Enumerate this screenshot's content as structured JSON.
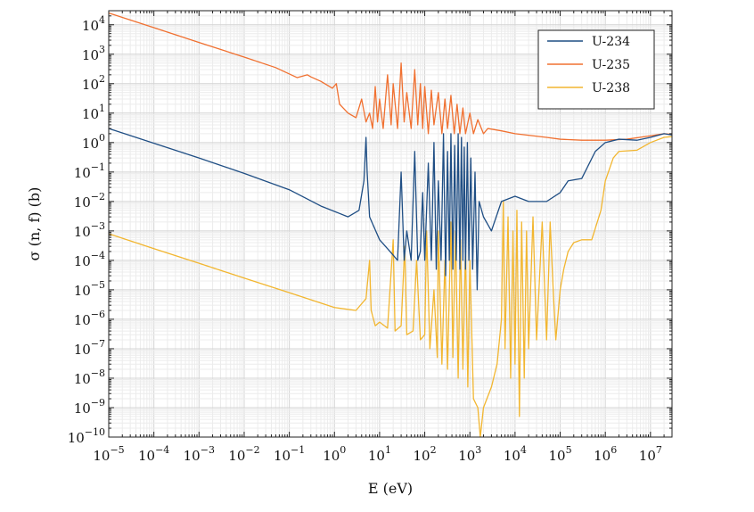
{
  "chart_data": {
    "type": "line",
    "title": "",
    "xlabel": "E (eV)",
    "ylabel": "σ (n, f) (b)",
    "xscale": "log",
    "yscale": "log",
    "xlim": [
      1e-05,
      30000000
    ],
    "ylim": [
      1e-10,
      30000
    ],
    "grid": true,
    "legend_position": "top-right",
    "x_ticks": [
      {
        "value": 1e-05,
        "base": "10",
        "exp": "−5"
      },
      {
        "value": 0.0001,
        "base": "10",
        "exp": "−4"
      },
      {
        "value": 0.001,
        "base": "10",
        "exp": "−3"
      },
      {
        "value": 0.01,
        "base": "10",
        "exp": "−2"
      },
      {
        "value": 0.1,
        "base": "10",
        "exp": "−1"
      },
      {
        "value": 1,
        "base": "10",
        "exp": "0"
      },
      {
        "value": 10,
        "base": "10",
        "exp": "1"
      },
      {
        "value": 100,
        "base": "10",
        "exp": "2"
      },
      {
        "value": 1000,
        "base": "10",
        "exp": "3"
      },
      {
        "value": 10000,
        "base": "10",
        "exp": "4"
      },
      {
        "value": 100000,
        "base": "10",
        "exp": "5"
      },
      {
        "value": 1000000,
        "base": "10",
        "exp": "6"
      },
      {
        "value": 10000000,
        "base": "10",
        "exp": "7"
      }
    ],
    "y_ticks": [
      {
        "value": 1e-10,
        "base": "10",
        "exp": "−10"
      },
      {
        "value": 1e-09,
        "base": "10",
        "exp": "−9"
      },
      {
        "value": 1e-08,
        "base": "10",
        "exp": "−8"
      },
      {
        "value": 1e-07,
        "base": "10",
        "exp": "−7"
      },
      {
        "value": 1e-06,
        "base": "10",
        "exp": "−6"
      },
      {
        "value": 1e-05,
        "base": "10",
        "exp": "−5"
      },
      {
        "value": 0.0001,
        "base": "10",
        "exp": "−4"
      },
      {
        "value": 0.001,
        "base": "10",
        "exp": "−3"
      },
      {
        "value": 0.01,
        "base": "10",
        "exp": "−2"
      },
      {
        "value": 0.1,
        "base": "10",
        "exp": "−1"
      },
      {
        "value": 1,
        "base": "10",
        "exp": "0"
      },
      {
        "value": 10,
        "base": "10",
        "exp": "1"
      },
      {
        "value": 100,
        "base": "10",
        "exp": "2"
      },
      {
        "value": 1000,
        "base": "10",
        "exp": "3"
      },
      {
        "value": 10000,
        "base": "10",
        "exp": "4"
      }
    ],
    "series": [
      {
        "name": "U-234",
        "color": "#1f4e84",
        "points": [
          [
            1e-05,
            3.0
          ],
          [
            0.001,
            0.3
          ],
          [
            0.01,
            0.09
          ],
          [
            0.1,
            0.025
          ],
          [
            0.5,
            0.007
          ],
          [
            2.0,
            0.003
          ],
          [
            3.5,
            0.005
          ],
          [
            4.5,
            0.05
          ],
          [
            5.0,
            1.5
          ],
          [
            5.3,
            0.1
          ],
          [
            6.0,
            0.003
          ],
          [
            10,
            0.0005
          ],
          [
            15,
            0.00025
          ],
          [
            20,
            0.00015
          ],
          [
            25,
            0.0001
          ],
          [
            30,
            0.1
          ],
          [
            35,
            0.0001
          ],
          [
            40,
            0.001
          ],
          [
            50,
            0.0001
          ],
          [
            60,
            0.5
          ],
          [
            70,
            0.0001
          ],
          [
            80,
            0.0002
          ],
          [
            90,
            0.02
          ],
          [
            100,
            0.0001
          ],
          [
            120,
            0.2
          ],
          [
            140,
            0.0001
          ],
          [
            160,
            1.0
          ],
          [
            180,
            5e-05
          ],
          [
            200,
            0.05
          ],
          [
            230,
            0.0001
          ],
          [
            260,
            2.0
          ],
          [
            290,
            3e-05
          ],
          [
            320,
            0.5
          ],
          [
            350,
            0.0001
          ],
          [
            380,
            2.0
          ],
          [
            420,
            5e-05
          ],
          [
            460,
            0.8
          ],
          [
            500,
            0.0001
          ],
          [
            550,
            2.0
          ],
          [
            600,
            5e-05
          ],
          [
            650,
            1.5
          ],
          [
            700,
            0.0001
          ],
          [
            750,
            0.7
          ],
          [
            800,
            5e-05
          ],
          [
            880,
            1.0
          ],
          [
            950,
            0.0001
          ],
          [
            1050,
            0.3
          ],
          [
            1150,
            5e-05
          ],
          [
            1300,
            0.1
          ],
          [
            1450,
            1e-05
          ],
          [
            1600,
            0.01
          ],
          [
            2000,
            0.003
          ],
          [
            3000,
            0.001
          ],
          [
            5000,
            0.01
          ],
          [
            10000,
            0.015
          ],
          [
            20000,
            0.01
          ],
          [
            50000,
            0.01
          ],
          [
            100000,
            0.02
          ],
          [
            150000,
            0.05
          ],
          [
            300000,
            0.06
          ],
          [
            600000,
            0.5
          ],
          [
            1000000,
            1.0
          ],
          [
            2000000,
            1.3
          ],
          [
            5000000,
            1.2
          ],
          [
            10000000,
            1.5
          ],
          [
            20000000,
            2.0
          ],
          [
            30000000,
            1.8
          ]
        ]
      },
      {
        "name": "U-235",
        "color": "#f07030",
        "points": [
          [
            1e-05,
            25000
          ],
          [
            0.0001,
            8000
          ],
          [
            0.001,
            2500
          ],
          [
            0.01,
            800
          ],
          [
            0.05,
            350
          ],
          [
            0.15,
            160
          ],
          [
            0.25,
            200
          ],
          [
            0.3,
            170
          ],
          [
            0.5,
            120
          ],
          [
            0.9,
            70
          ],
          [
            1.1,
            100
          ],
          [
            1.3,
            20
          ],
          [
            2.0,
            10
          ],
          [
            3.0,
            7
          ],
          [
            4.0,
            30
          ],
          [
            5.0,
            5
          ],
          [
            6.0,
            10
          ],
          [
            7.0,
            3
          ],
          [
            8.0,
            80
          ],
          [
            9.0,
            5
          ],
          [
            10,
            30
          ],
          [
            12,
            3
          ],
          [
            15,
            200
          ],
          [
            18,
            4
          ],
          [
            20,
            100
          ],
          [
            25,
            3
          ],
          [
            30,
            500
          ],
          [
            35,
            5
          ],
          [
            40,
            50
          ],
          [
            50,
            3
          ],
          [
            60,
            300
          ],
          [
            70,
            4
          ],
          [
            80,
            100
          ],
          [
            90,
            3
          ],
          [
            100,
            80
          ],
          [
            120,
            2
          ],
          [
            140,
            60
          ],
          [
            160,
            4
          ],
          [
            200,
            50
          ],
          [
            240,
            2
          ],
          [
            280,
            30
          ],
          [
            320,
            3
          ],
          [
            380,
            40
          ],
          [
            450,
            2
          ],
          [
            520,
            20
          ],
          [
            600,
            2
          ],
          [
            700,
            15
          ],
          [
            800,
            2
          ],
          [
            1000,
            10
          ],
          [
            1200,
            2
          ],
          [
            1500,
            6
          ],
          [
            2000,
            2
          ],
          [
            2500,
            3
          ],
          [
            5000,
            2.5
          ],
          [
            10000,
            2
          ],
          [
            50000,
            1.5
          ],
          [
            100000,
            1.3
          ],
          [
            300000,
            1.2
          ],
          [
            1000000,
            1.2
          ],
          [
            3000000,
            1.3
          ],
          [
            10000000,
            1.7
          ],
          [
            20000000,
            2.0
          ],
          [
            30000000,
            1.9
          ]
        ]
      },
      {
        "name": "U-238",
        "color": "#f2b630",
        "points": [
          [
            1e-05,
            0.0008
          ],
          [
            0.0001,
            0.00025
          ],
          [
            0.001,
            8e-05
          ],
          [
            0.01,
            2.5e-05
          ],
          [
            0.1,
            8e-06
          ],
          [
            1.0,
            2.5e-06
          ],
          [
            3.0,
            2e-06
          ],
          [
            5.0,
            5e-06
          ],
          [
            6.0,
            0.0001
          ],
          [
            6.5,
            2e-06
          ],
          [
            8.0,
            6e-07
          ],
          [
            10,
            8e-07
          ],
          [
            15,
            5e-07
          ],
          [
            20,
            0.0005
          ],
          [
            22,
            4e-07
          ],
          [
            30,
            6e-07
          ],
          [
            36,
            0.0003
          ],
          [
            40,
            3e-07
          ],
          [
            55,
            4e-07
          ],
          [
            66,
            0.0001
          ],
          [
            80,
            2e-07
          ],
          [
            100,
            3e-07
          ],
          [
            110,
            0.001
          ],
          [
            130,
            1e-07
          ],
          [
            160,
            1e-05
          ],
          [
            190,
            5e-08
          ],
          [
            200,
            0.001
          ],
          [
            240,
            3e-08
          ],
          [
            280,
            0.0001
          ],
          [
            320,
            2e-08
          ],
          [
            380,
            0.002
          ],
          [
            420,
            5e-08
          ],
          [
            480,
            0.001
          ],
          [
            550,
            1e-08
          ],
          [
            620,
            0.0005
          ],
          [
            700,
            2e-08
          ],
          [
            800,
            0.0003
          ],
          [
            900,
            5e-09
          ],
          [
            1000,
            0.0001
          ],
          [
            1200,
            2e-09
          ],
          [
            1500,
            1e-09
          ],
          [
            1700,
            1e-10
          ],
          [
            2000,
            1e-09
          ],
          [
            3000,
            5e-09
          ],
          [
            4000,
            3e-08
          ],
          [
            5000,
            1e-06
          ],
          [
            5500,
            0.01
          ],
          [
            6000,
            1e-07
          ],
          [
            7000,
            0.003
          ],
          [
            8000,
            1e-08
          ],
          [
            9000,
            0.001
          ],
          [
            10000,
            3e-08
          ],
          [
            11000,
            0.005
          ],
          [
            12500,
            5e-10
          ],
          [
            14000,
            0.002
          ],
          [
            16000,
            1e-08
          ],
          [
            18000,
            0.001
          ],
          [
            20000,
            1e-07
          ],
          [
            25000,
            0.003
          ],
          [
            30000,
            2e-07
          ],
          [
            40000,
            0.002
          ],
          [
            50000,
            2e-07
          ],
          [
            60000,
            0.002
          ],
          [
            70000,
            1e-05
          ],
          [
            80000,
            2e-07
          ],
          [
            100000,
            1e-05
          ],
          [
            120000,
            5e-05
          ],
          [
            150000,
            0.0002
          ],
          [
            200000,
            0.0004
          ],
          [
            300000,
            0.0005
          ],
          [
            500000,
            0.0005
          ],
          [
            800000,
            0.005
          ],
          [
            1000000,
            0.05
          ],
          [
            1500000,
            0.3
          ],
          [
            2000000,
            0.5
          ],
          [
            5000000,
            0.55
          ],
          [
            10000000,
            1.0
          ],
          [
            20000000,
            1.5
          ],
          [
            30000000,
            1.6
          ]
        ]
      }
    ]
  }
}
